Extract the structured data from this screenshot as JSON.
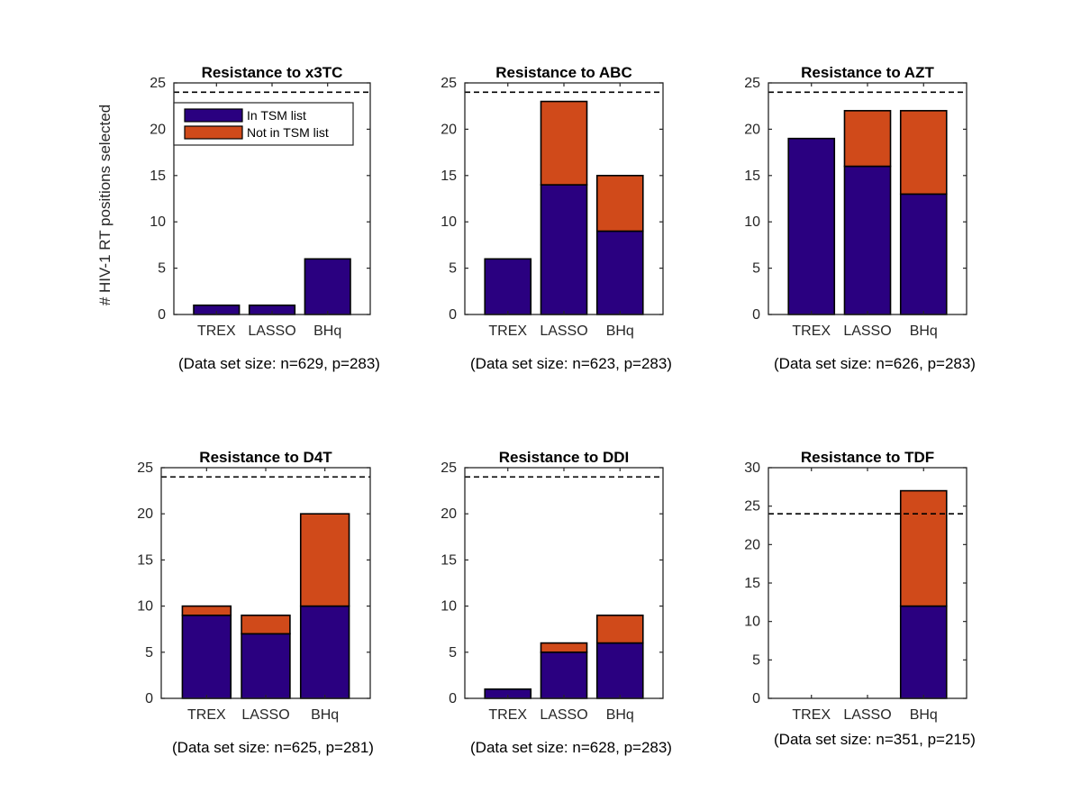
{
  "colors": {
    "in_tsm": "#2a0080",
    "not_in_tsm": "#d04a1a",
    "axis": "#262626",
    "reference_line": "#000000"
  },
  "chart_data": [
    {
      "type": "bar",
      "stacked": true,
      "title": "Resistance to x3TC",
      "ylabel": "# HIV-1 RT positions selected",
      "categories": [
        "TREX",
        "LASSO",
        "BHq"
      ],
      "ylim": [
        0,
        25
      ],
      "yticks": [
        0,
        5,
        10,
        15,
        20,
        25
      ],
      "reference_line": 24,
      "series": [
        {
          "name": "In TSM list",
          "values": [
            1,
            1,
            6
          ]
        },
        {
          "name": "Not in TSM list",
          "values": [
            0,
            0,
            0
          ]
        }
      ],
      "caption": "(Data set size: n=629, p=283)",
      "legend": "top-right"
    },
    {
      "type": "bar",
      "stacked": true,
      "title": "Resistance to ABC",
      "categories": [
        "TREX",
        "LASSO",
        "BHq"
      ],
      "ylim": [
        0,
        25
      ],
      "yticks": [
        0,
        5,
        10,
        15,
        20,
        25
      ],
      "reference_line": 24,
      "series": [
        {
          "name": "In TSM list",
          "values": [
            6,
            14,
            9
          ]
        },
        {
          "name": "Not in TSM list",
          "values": [
            0,
            9,
            6
          ]
        }
      ],
      "caption": "(Data set size: n=623, p=283)"
    },
    {
      "type": "bar",
      "stacked": true,
      "title": "Resistance to AZT",
      "categories": [
        "TREX",
        "LASSO",
        "BHq"
      ],
      "ylim": [
        0,
        25
      ],
      "yticks": [
        0,
        5,
        10,
        15,
        20,
        25
      ],
      "reference_line": 24,
      "series": [
        {
          "name": "In TSM list",
          "values": [
            19,
            16,
            13
          ]
        },
        {
          "name": "Not in TSM list",
          "values": [
            0,
            6,
            9
          ]
        }
      ],
      "caption": "(Data set size: n=626, p=283)"
    },
    {
      "type": "bar",
      "stacked": true,
      "title": "Resistance to D4T",
      "categories": [
        "TREX",
        "LASSO",
        "BHq"
      ],
      "ylim": [
        0,
        25
      ],
      "yticks": [
        0,
        5,
        10,
        15,
        20,
        25
      ],
      "reference_line": 24,
      "series": [
        {
          "name": "In TSM list",
          "values": [
            9,
            7,
            10
          ]
        },
        {
          "name": "Not in TSM list",
          "values": [
            1,
            2,
            10
          ]
        }
      ],
      "caption": "(Data set size: n=625, p=281)"
    },
    {
      "type": "bar",
      "stacked": true,
      "title": "Resistance to DDI",
      "categories": [
        "TREX",
        "LASSO",
        "BHq"
      ],
      "ylim": [
        0,
        25
      ],
      "yticks": [
        0,
        5,
        10,
        15,
        20,
        25
      ],
      "reference_line": 24,
      "series": [
        {
          "name": "In TSM list",
          "values": [
            1,
            5,
            6
          ]
        },
        {
          "name": "Not in TSM list",
          "values": [
            0,
            1,
            3
          ]
        }
      ],
      "caption": "(Data set size: n=628, p=283)"
    },
    {
      "type": "bar",
      "stacked": true,
      "title": "Resistance to TDF",
      "categories": [
        "TREX",
        "LASSO",
        "BHq"
      ],
      "ylim": [
        0,
        30
      ],
      "yticks": [
        0,
        5,
        10,
        15,
        20,
        25,
        30
      ],
      "reference_line": 24,
      "series": [
        {
          "name": "In TSM list",
          "values": [
            0,
            0,
            12
          ]
        },
        {
          "name": "Not in TSM list",
          "values": [
            0,
            0,
            15
          ]
        }
      ],
      "caption": "(Data set size: n=351, p=215)"
    }
  ]
}
